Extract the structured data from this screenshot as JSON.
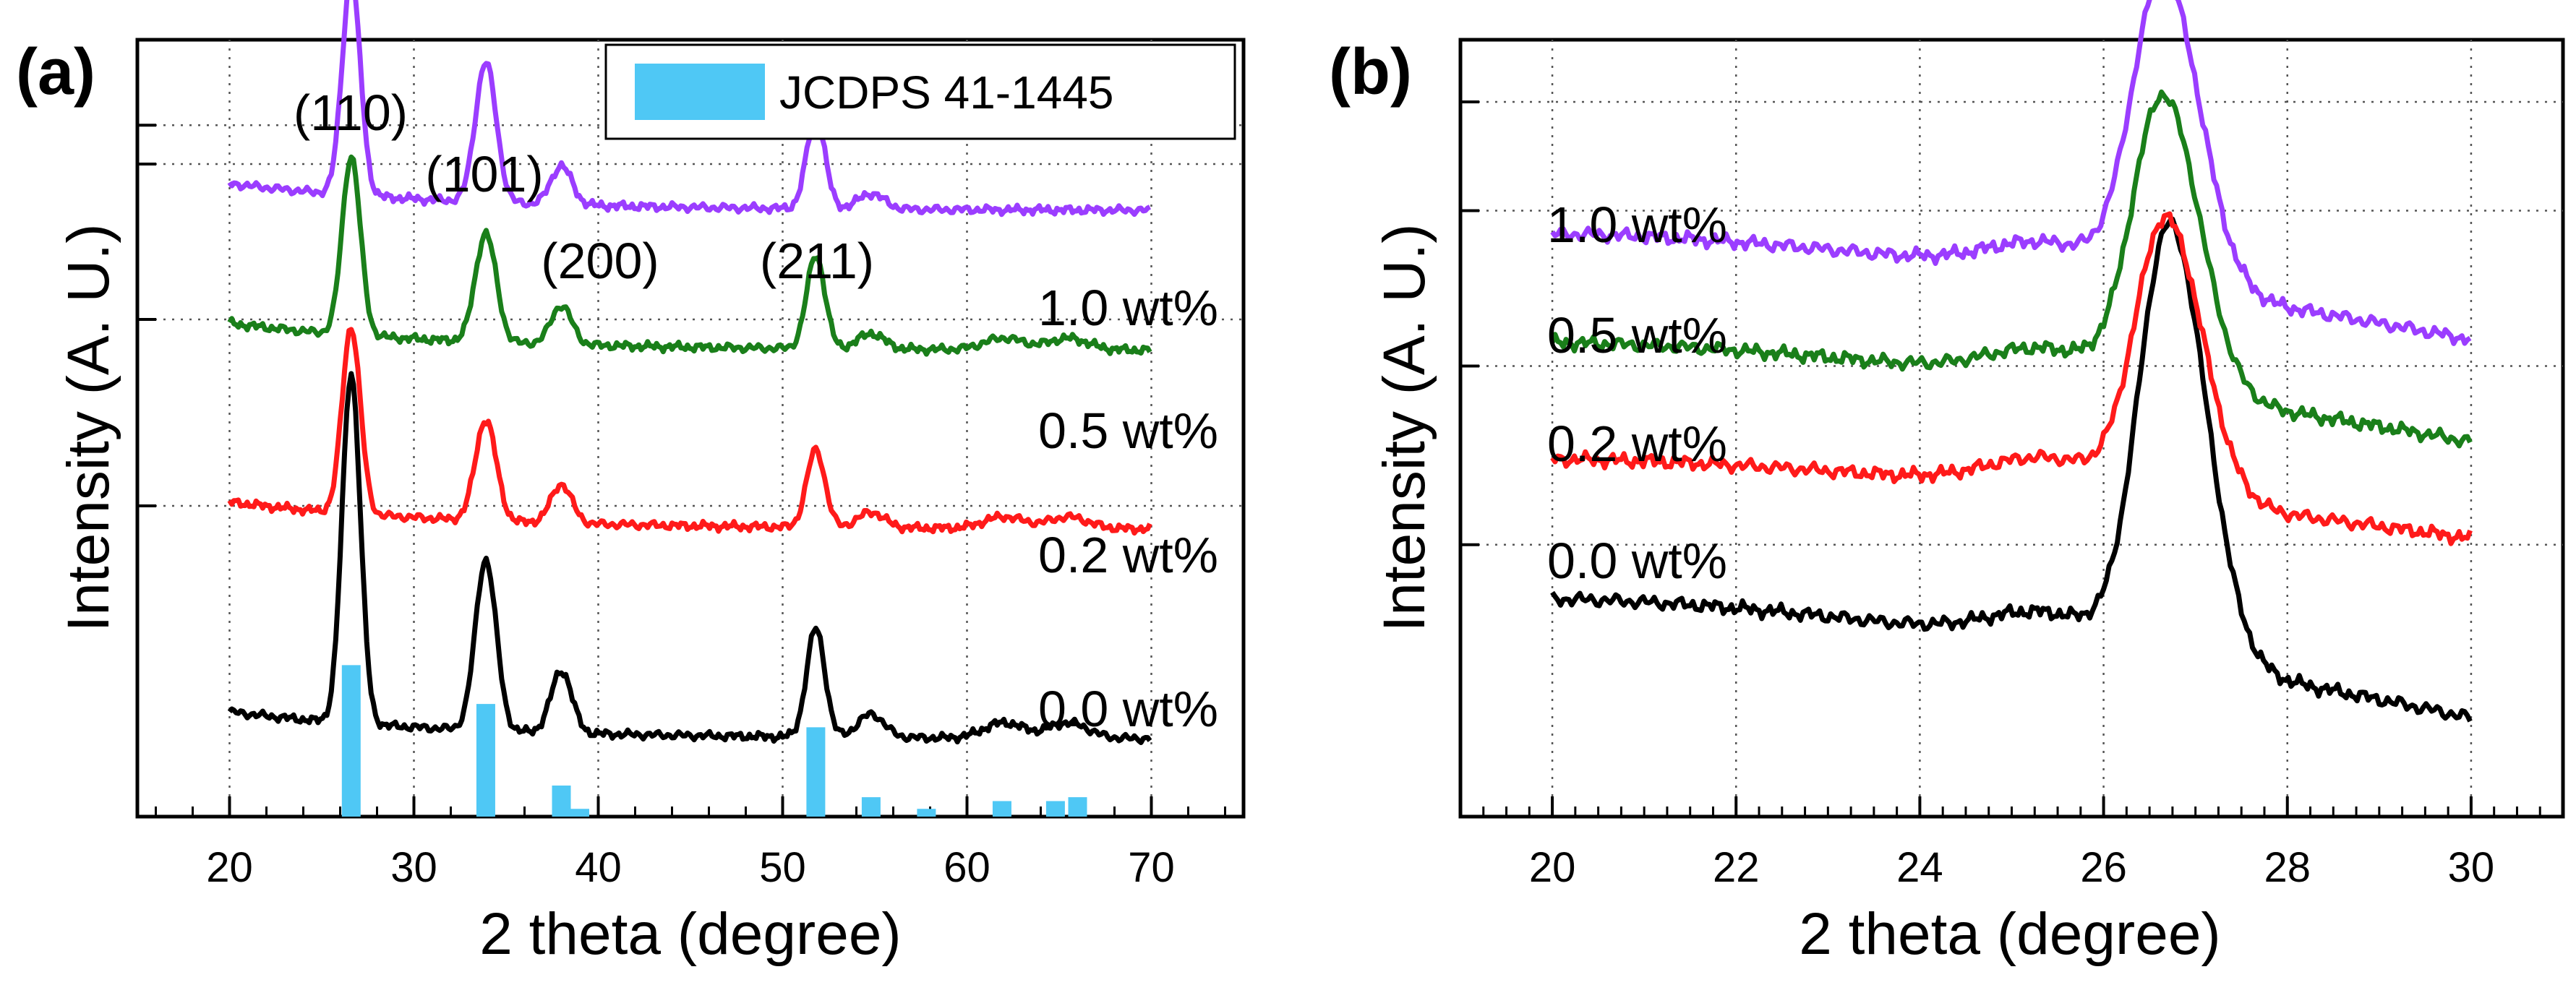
{
  "colors": {
    "black": "#000000",
    "red": "#ff1a1a",
    "green": "#1a7f1a",
    "purple": "#9b3dff",
    "reference": "#4fc8f5",
    "grid": "#555555"
  },
  "chart_data": [
    {
      "panel": "(a)",
      "type": "line",
      "xlabel": "2 theta (degree)",
      "ylabel": "Intensity (A. U.)",
      "xlim": [
        15,
        75
      ],
      "xticks": [
        "20",
        "30",
        "40",
        "50",
        "60",
        "70"
      ],
      "ylim": [
        0,
        100
      ],
      "grid": true,
      "legend": {
        "label": "JCDPS 41-1445",
        "position": "top-right"
      },
      "reference_bars": {
        "name": "JCDPS 41-1445",
        "x": [
          26.6,
          33.9,
          38.0,
          39.0,
          51.8,
          54.8,
          57.8,
          61.9,
          64.8,
          66.0
        ],
        "height": [
          19.5,
          14.5,
          4.0,
          1.0,
          11.5,
          2.5,
          1.0,
          2.0,
          2.0,
          2.5
        ]
      },
      "peak_labels": [
        {
          "text": "(110)",
          "x": 26.6
        },
        {
          "text": "(101)",
          "x": 33.9
        },
        {
          "text": "(200)",
          "x": 38.0
        },
        {
          "text": "(211)",
          "x": 51.8
        }
      ],
      "series": [
        {
          "name": "0.0 wt%",
          "color": "#000000",
          "offset": 10,
          "baseline": 26,
          "tail": 16,
          "peaks": [
            [
              26.6,
              45,
              0.7
            ],
            [
              33.9,
              22,
              0.8
            ],
            [
              38.0,
              8,
              0.8
            ],
            [
              51.8,
              14,
              0.7
            ],
            [
              54.8,
              3,
              1.0
            ],
            [
              62,
              2,
              1.5
            ],
            [
              65.5,
              2,
              1.5
            ]
          ]
        },
        {
          "name": "0.2 wt%",
          "color": "#ff1a1a",
          "offset": 37,
          "baseline": 26,
          "tail": 16,
          "peaks": [
            [
              26.6,
              24,
              0.7
            ],
            [
              33.9,
              13,
              0.8
            ],
            [
              38.0,
              5,
              0.8
            ],
            [
              51.8,
              10,
              0.7
            ],
            [
              54.8,
              2,
              1.0
            ],
            [
              62,
              1.5,
              1.5
            ],
            [
              65.5,
              1.5,
              1.5
            ]
          ]
        },
        {
          "name": "0.5 wt%",
          "color": "#1a7f1a",
          "offset": 60,
          "baseline": 26,
          "tail": 16,
          "peaks": [
            [
              26.6,
              23,
              0.7
            ],
            [
              33.9,
              14,
              0.8
            ],
            [
              38.0,
              5,
              0.8
            ],
            [
              51.8,
              12,
              0.7
            ],
            [
              54.8,
              2,
              1.0
            ],
            [
              62,
              1.5,
              1.5
            ],
            [
              65.5,
              1.5,
              1.5
            ]
          ]
        },
        {
          "name": "1.0 wt%",
          "color": "#9b3dff",
          "offset": 78,
          "baseline": 26,
          "tail": 16,
          "peaks": [
            [
              26.6,
              28,
              0.7
            ],
            [
              33.9,
              18,
              0.8
            ],
            [
              38.0,
              5,
              0.8
            ],
            [
              51.8,
              12,
              0.7
            ],
            [
              54.8,
              2,
              1.0
            ]
          ]
        }
      ]
    },
    {
      "panel": "(b)",
      "type": "line",
      "xlabel": "2 theta (degree)",
      "ylabel": "Intensity (A. U.)",
      "xlim": [
        19,
        31
      ],
      "xticks": [
        "20",
        "22",
        "24",
        "26",
        "28",
        "30"
      ],
      "ylim": [
        0,
        100
      ],
      "grid": true,
      "series": [
        {
          "name": "0.0 wt%",
          "color": "#000000",
          "start": 28,
          "end": 10,
          "peak_x": 26.72,
          "peak_height": 56,
          "width": 0.45
        },
        {
          "name": "0.2 wt%",
          "color": "#ff1a1a",
          "start": 46,
          "end": 34,
          "peak_x": 26.68,
          "peak_height": 36,
          "width": 0.45
        },
        {
          "name": "0.5 wt%",
          "color": "#1a7f1a",
          "start": 61,
          "end": 46,
          "peak_x": 26.65,
          "peak_height": 38,
          "width": 0.45
        },
        {
          "name": "1.0 wt%",
          "color": "#9b3dff",
          "start": 75,
          "end": 59,
          "peak_x": 26.65,
          "peak_height": 40,
          "width": 0.45
        }
      ]
    }
  ]
}
